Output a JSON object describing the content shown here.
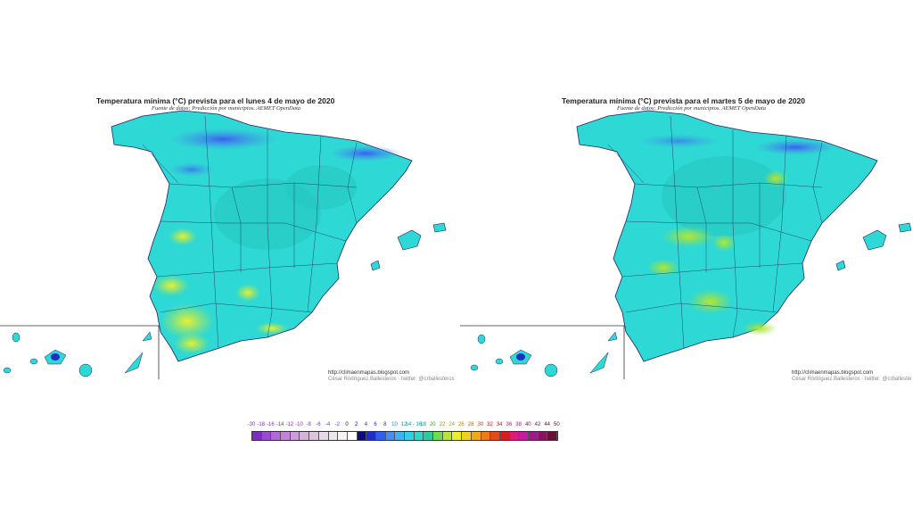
{
  "maps": [
    {
      "title": "Temperatura mínima (°C) prevista para el lunes 4 de mayo de 2020",
      "source": "Fuente de datos: Predicción por municipios. AEMET OpenData",
      "credit_url": "http://climaenmapas.blogspot.com",
      "credit_author": "César Rodríguez Ballesteros · twitter: @crballesteros"
    },
    {
      "title": "Temperatura mínima (°C) prevista para el martes 5 de mayo de 2020",
      "source": "Fuente de datos: Predicción por municipios. AEMET OpenData",
      "credit_url": "http://climaenmapas.blogspot.com",
      "credit_author": "César Rodríguez Ballesteros · twitter: @crballesteros"
    }
  ],
  "legend": {
    "labels": [
      "-30",
      "-18",
      "-16",
      "-14",
      "-12",
      "-10",
      "-8",
      "-6",
      "-4",
      "-2",
      "0",
      "2",
      "4",
      "6",
      "8",
      "10",
      "12",
      "14 - 16",
      "18",
      "20",
      "22",
      "24",
      "26",
      "28",
      "30",
      "32",
      "34",
      "36",
      "38",
      "40",
      "42",
      "44",
      "50"
    ],
    "colors": [
      "#7b2fbe",
      "#9a4cd0",
      "#b06ad8",
      "#c184d8",
      "#cc9ed6",
      "#d4b3d8",
      "#ddc6dd",
      "#e6d8e6",
      "#eee6ee",
      "#f6f2f6",
      "#ffffff",
      "#0c0c7a",
      "#1e2ec8",
      "#2f5ef0",
      "#4a8cf4",
      "#40b2f2",
      "#2fd2e4",
      "#2cd8cc",
      "#30c8a0",
      "#6edc4e",
      "#b8e62c",
      "#e8f028",
      "#f0d020",
      "#f0a818",
      "#ee7a18",
      "#e44a1a",
      "#d81c20",
      "#e01a78",
      "#c41aa0",
      "#9c1a8c",
      "#861460",
      "#6a1034"
    ],
    "label_colors": [
      "#7b2fbe",
      "#7b2fbe",
      "#7b2fbe",
      "#7b2fbe",
      "#7b2fbe",
      "#7b2fbe",
      "#7b2fbe",
      "#7b2fbe",
      "#7b2fbe",
      "#7b2fbe",
      "#111111",
      "#0c0c7a",
      "#1e2ec8",
      "#1e2ec8",
      "#1e2ec8",
      "#1e8cc8",
      "#0aa0a8",
      "#0aa0a8",
      "#0a9070",
      "#3aa020",
      "#8aa010",
      "#b0a010",
      "#c08010",
      "#c06010",
      "#c04010",
      "#c01818",
      "#c01818",
      "#c01870",
      "#a01890",
      "#801870",
      "#701050",
      "#601030",
      "#501028"
    ]
  }
}
